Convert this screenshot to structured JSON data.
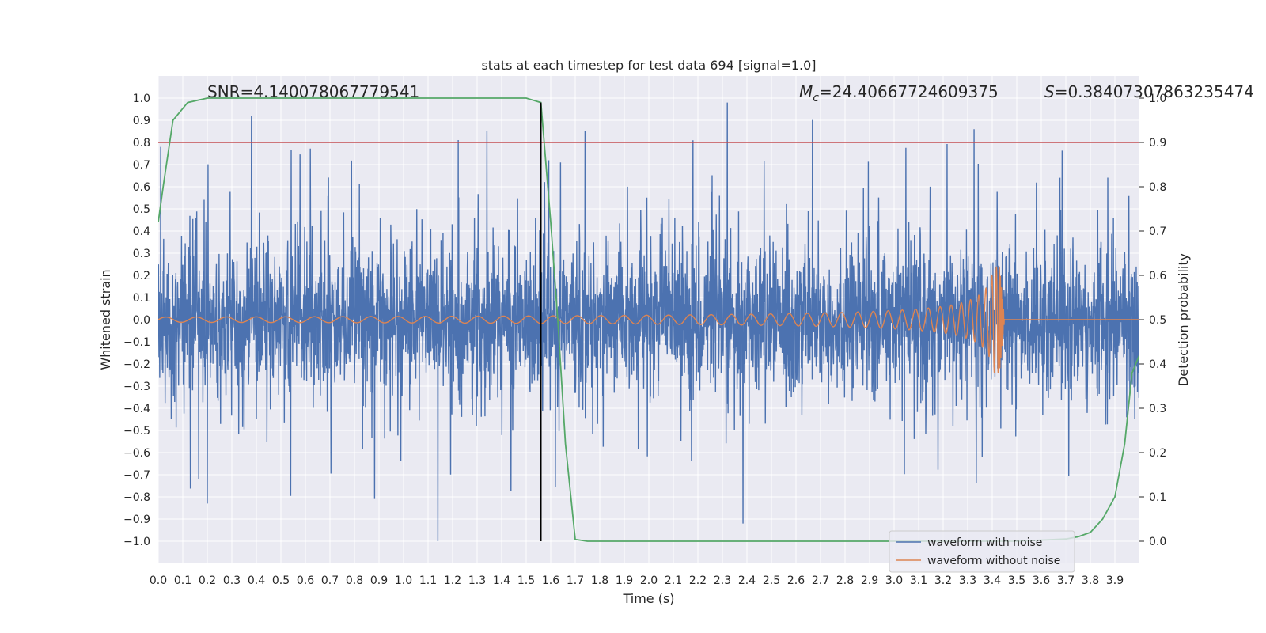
{
  "chart_data": {
    "type": "line",
    "title": "stats at each timestep for test data 694 [signal=1.0]",
    "xlabel": "Time (s)",
    "ylabel_left": "Whitened strain",
    "ylabel_right": "Detection probability",
    "xlim": [
      0.0,
      4.0
    ],
    "ylim_left": [
      -1.1,
      1.1
    ],
    "ylim_right": [
      -0.05,
      1.05
    ],
    "x_ticks": [
      "0.0",
      "0.1",
      "0.2",
      "0.3",
      "0.4",
      "0.5",
      "0.6",
      "0.7",
      "0.8",
      "0.9",
      "1.0",
      "1.1",
      "1.2",
      "1.3",
      "1.4",
      "1.5",
      "1.6",
      "1.7",
      "1.8",
      "1.9",
      "2.0",
      "2.1",
      "2.2",
      "2.3",
      "2.4",
      "2.5",
      "2.6",
      "2.7",
      "2.8",
      "2.9",
      "3.0",
      "3.1",
      "3.2",
      "3.3",
      "3.4",
      "3.5",
      "3.6",
      "3.7",
      "3.8",
      "3.9"
    ],
    "y_ticks_left": [
      "1.0",
      "0.9",
      "0.8",
      "0.7",
      "0.6",
      "0.5",
      "0.4",
      "0.3",
      "0.2",
      "0.1",
      "0.0",
      "−0.1",
      "−0.2",
      "−0.3",
      "−0.4",
      "−0.5",
      "−0.6",
      "−0.7",
      "−0.8",
      "−0.9",
      "−1.0"
    ],
    "y_ticks_right": [
      "1.0",
      "0.9",
      "0.8",
      "0.7",
      "0.6",
      "0.5",
      "0.4",
      "0.3",
      "0.2",
      "0.1",
      "0.0"
    ],
    "grid": true,
    "legend_position": "lower-right",
    "annotations": {
      "snr": "SNR=4.140078067779541",
      "mc_symbol": "M",
      "mc_sub": "c",
      "mc_value": "=24.40667724609375",
      "s_symbol": "S",
      "s_value": "=0.38407307863235474"
    },
    "threshold_line": {
      "axis": "right",
      "y": 0.9,
      "color": "#c44e52"
    },
    "merger_marker": {
      "x": 1.56,
      "ylim": [
        -1.0,
        0.98
      ],
      "color": "#000000"
    },
    "series": [
      {
        "name": "waveform with noise",
        "axis": "left",
        "color": "#4c72b0",
        "kind": "noise",
        "sample_rate_hz": 1000,
        "amplitude_range": [
          -1.0,
          0.98
        ],
        "notable_peaks": [
          [
            0.01,
            0.78
          ],
          [
            0.38,
            0.92
          ],
          [
            1.14,
            -1.0
          ],
          [
            1.34,
            0.85
          ],
          [
            2.32,
            0.98
          ],
          [
            2.18,
            0.81
          ],
          [
            1.74,
            0.85
          ],
          [
            0.2,
            -0.83
          ]
        ]
      },
      {
        "name": "waveform without noise",
        "axis": "left",
        "color": "#dd8452",
        "kind": "chirp",
        "merger_time": 3.43,
        "peak_amplitude": 0.24,
        "start_amplitude": 0.012
      },
      {
        "axis": "right",
        "color": "#55a868",
        "kind": "probability",
        "x": [
          0.0,
          0.02,
          0.06,
          0.12,
          0.2,
          0.3,
          0.6,
          1.0,
          1.3,
          1.5,
          1.56,
          1.6,
          1.63,
          1.66,
          1.7,
          1.75,
          1.8,
          2.0,
          2.5,
          3.0,
          3.5,
          3.7,
          3.75,
          3.8,
          3.85,
          3.9,
          3.94,
          3.97,
          4.0
        ],
        "y": [
          0.72,
          0.8,
          0.95,
          0.99,
          1.0,
          1.0,
          1.0,
          1.0,
          1.0,
          1.0,
          0.99,
          0.72,
          0.49,
          0.22,
          0.004,
          0.0,
          0.0,
          0.0,
          0.0,
          0.0,
          0.0,
          0.005,
          0.01,
          0.02,
          0.05,
          0.1,
          0.22,
          0.38,
          0.42
        ]
      }
    ]
  }
}
